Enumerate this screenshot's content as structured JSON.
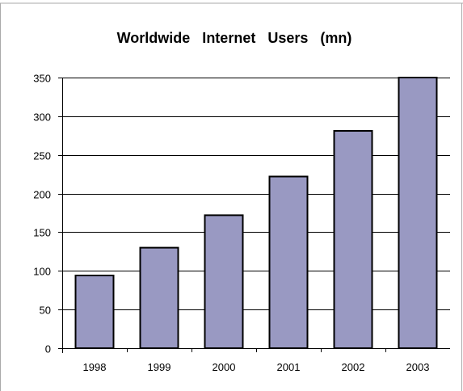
{
  "chart_data": {
    "type": "bar",
    "title": "Worldwide   Internet   Users   (mn)",
    "xlabel": "",
    "ylabel": "",
    "categories": [
      "1998",
      "1999",
      "2000",
      "2001",
      "2002",
      "2003"
    ],
    "values": [
      94,
      130,
      172,
      222,
      281,
      350
    ],
    "ylim": [
      0,
      350
    ],
    "yticks": [
      0,
      50,
      100,
      150,
      200,
      250,
      300,
      350
    ],
    "grid": true,
    "legend": "none",
    "colors": {
      "bar_fill": "#9999c2",
      "bar_stroke": "#000000",
      "gridline": "#000000",
      "frame": "#aaaaaa"
    }
  }
}
